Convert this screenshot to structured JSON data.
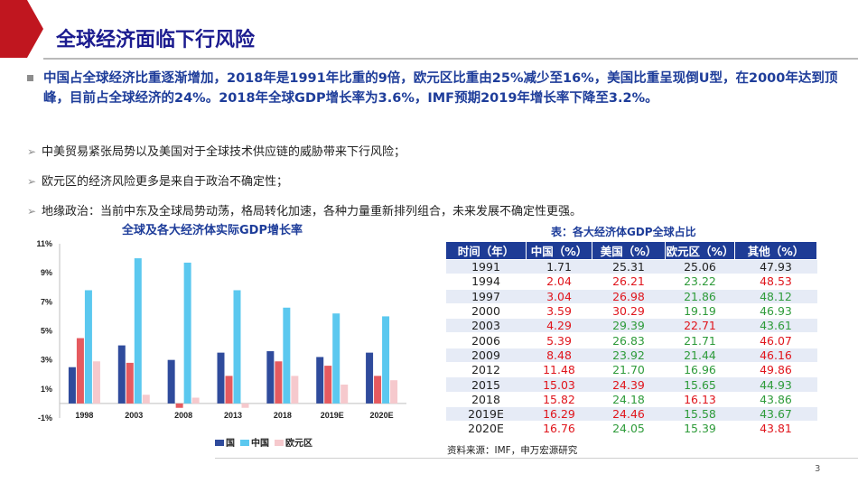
{
  "slide": {
    "title": "全球经济面临下行风险",
    "page_number": "3",
    "colors": {
      "title": "#1b1b8f",
      "accent_red": "#c0161f",
      "highlight_text": "#1e3d9a"
    }
  },
  "bullets": {
    "main": "中国占全球经济比重逐渐增加，2018年是1991年比重的9倍，欧元区比重由25%减少至16%，美国比重呈现倒U型，在2000年达到顶峰，目前占全球经济的24%。2018年全球GDP增长率为3.6%，IMF预期2019年增长率下降至3.2%。",
    "subs": [
      "中美贸易紧张局势以及美国对于全球技术供应链的威胁带来下行风险；",
      "欧元区的经济风险更多是来自于政治不确定性；",
      "地缘政治：当前中东及全球局势动荡，格局转化加速，各种力量重新排列组合，未来发展不确定性更强。"
    ],
    "sub_marker": "➢"
  },
  "chart_data": {
    "type": "bar",
    "title": "全球及各大经济体实际GDP增长率",
    "categories": [
      "1998",
      "2003",
      "2008",
      "2013",
      "2018",
      "2019E",
      "2020E"
    ],
    "ylim": [
      -1,
      11
    ],
    "yticks": [
      "11%",
      "9%",
      "7%",
      "5%",
      "3%",
      "1%",
      "-1%"
    ],
    "ytick_values": [
      11,
      9,
      7,
      5,
      3,
      1,
      -1
    ],
    "series": [
      {
        "name": "国",
        "color": "#2f4b9c",
        "values": [
          2.5,
          4.0,
          3.0,
          3.5,
          3.6,
          3.2,
          3.5
        ]
      },
      {
        "name": "",
        "color": "#e55a5f",
        "values": [
          4.5,
          2.8,
          -0.3,
          1.9,
          2.9,
          2.6,
          1.9
        ]
      },
      {
        "name": "中国",
        "color": "#5bc8ef",
        "values": [
          7.8,
          10.0,
          9.7,
          7.8,
          6.6,
          6.2,
          6.0
        ]
      },
      {
        "name": "欧元区",
        "color": "#f6c9cd",
        "values": [
          2.9,
          0.6,
          0.4,
          -0.3,
          1.9,
          1.3,
          1.6
        ]
      }
    ],
    "legend_position": "bottom",
    "grid": false
  },
  "table": {
    "title": "表：各大经济体GDP全球占比",
    "headers": [
      "时间（年）",
      "中国（%）",
      "美国（%）",
      "欧元区（%）",
      "其他（%）"
    ],
    "rows": [
      {
        "cells": [
          "1991",
          "1.71",
          "25.31",
          "25.06",
          "47.93"
        ],
        "colors": [
          "dark",
          "dark",
          "dark",
          "dark",
          "dark"
        ]
      },
      {
        "cells": [
          "1994",
          "2.04",
          "26.21",
          "23.22",
          "48.53"
        ],
        "colors": [
          "dark",
          "red",
          "red",
          "green",
          "red"
        ]
      },
      {
        "cells": [
          "1997",
          "3.04",
          "26.98",
          "21.86",
          "48.12"
        ],
        "colors": [
          "dark",
          "red",
          "red",
          "green",
          "green"
        ]
      },
      {
        "cells": [
          "2000",
          "3.59",
          "30.29",
          "19.19",
          "46.93"
        ],
        "colors": [
          "dark",
          "red",
          "red",
          "green",
          "green"
        ]
      },
      {
        "cells": [
          "2003",
          "4.29",
          "29.39",
          "22.71",
          "43.61"
        ],
        "colors": [
          "dark",
          "red",
          "green",
          "red",
          "green"
        ]
      },
      {
        "cells": [
          "2006",
          "5.39",
          "26.83",
          "21.71",
          "46.07"
        ],
        "colors": [
          "dark",
          "red",
          "green",
          "green",
          "red"
        ]
      },
      {
        "cells": [
          "2009",
          "8.48",
          "23.92",
          "21.44",
          "46.16"
        ],
        "colors": [
          "dark",
          "red",
          "green",
          "green",
          "red"
        ]
      },
      {
        "cells": [
          "2012",
          "11.48",
          "21.70",
          "16.96",
          "49.86"
        ],
        "colors": [
          "dark",
          "red",
          "green",
          "green",
          "red"
        ]
      },
      {
        "cells": [
          "2015",
          "15.03",
          "24.39",
          "15.65",
          "44.93"
        ],
        "colors": [
          "dark",
          "red",
          "red",
          "green",
          "green"
        ]
      },
      {
        "cells": [
          "2018",
          "15.82",
          "24.18",
          "16.13",
          "43.86"
        ],
        "colors": [
          "dark",
          "red",
          "green",
          "red",
          "green"
        ]
      },
      {
        "cells": [
          "2019E",
          "16.29",
          "24.46",
          "15.58",
          "43.67"
        ],
        "colors": [
          "dark",
          "red",
          "red",
          "green",
          "green"
        ]
      },
      {
        "cells": [
          "2020E",
          "16.76",
          "24.05",
          "15.39",
          "43.81"
        ],
        "colors": [
          "dark",
          "red",
          "green",
          "green",
          "red"
        ]
      }
    ],
    "source": "资料来源：IMF，申万宏源研究"
  }
}
